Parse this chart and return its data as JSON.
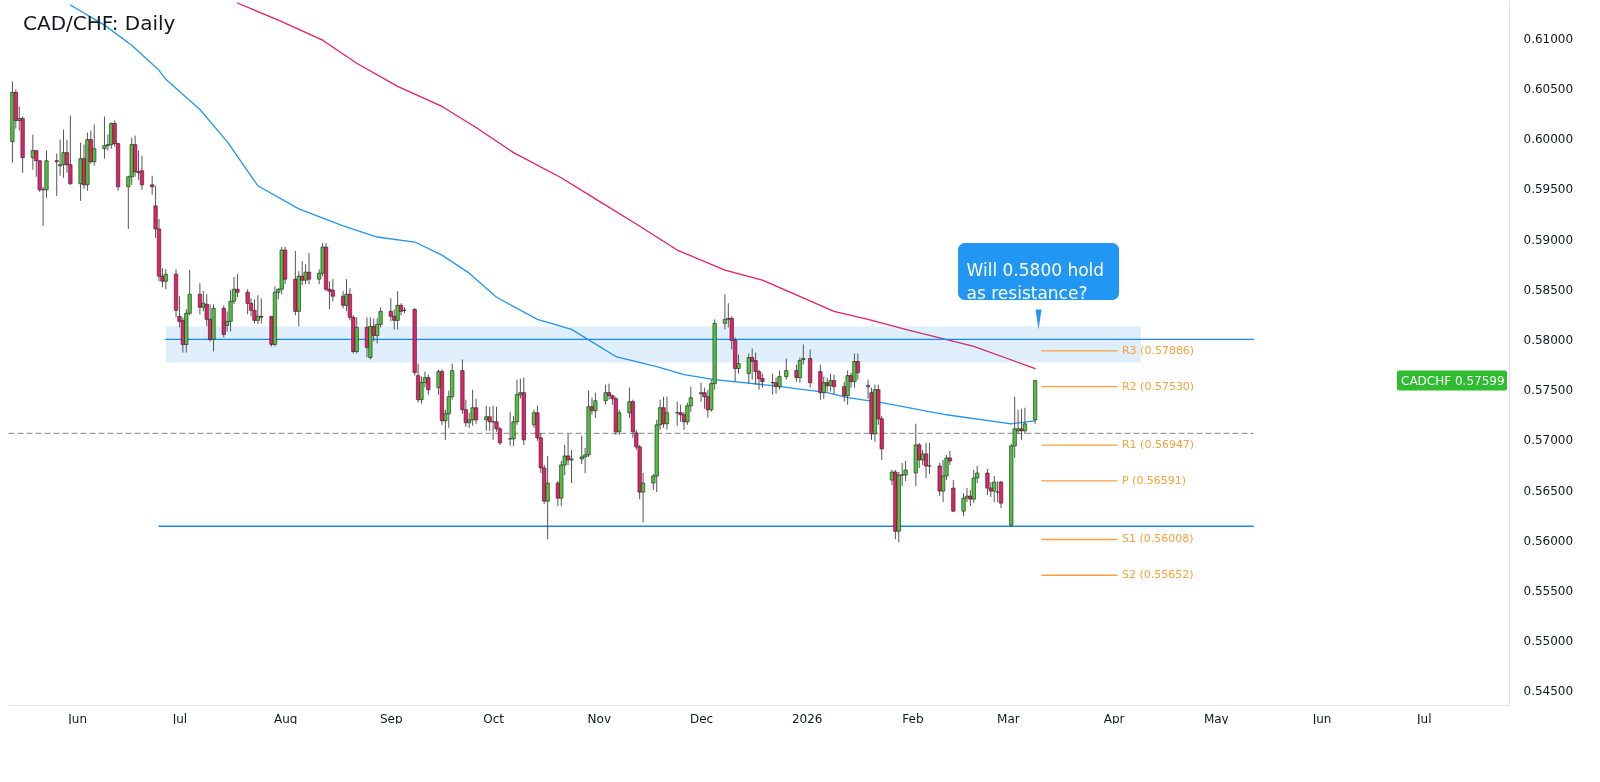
{
  "chart_data": {
    "type": "candlestick",
    "title": "CAD/CHF: Daily",
    "xlim": [
      "2025-05-12",
      "2026-07-26"
    ],
    "xticks": [
      {
        "value": "2025-06-01",
        "label": "Jun"
      },
      {
        "value": "2025-07-01",
        "label": "Jul"
      },
      {
        "value": "2025-08-01",
        "label": "Aug"
      },
      {
        "value": "2025-09-01",
        "label": "Sep"
      },
      {
        "value": "2025-10-01",
        "label": "Oct"
      },
      {
        "value": "2025-11-01",
        "label": "Nov"
      },
      {
        "value": "2025-12-01",
        "label": "Dec"
      },
      {
        "value": "2026-01-01",
        "label": "2026"
      },
      {
        "value": "2026-02-01",
        "label": "Feb"
      },
      {
        "value": "2026-03-01",
        "label": "Mar"
      },
      {
        "value": "2026-04-01",
        "label": "Apr"
      },
      {
        "value": "2026-05-01",
        "label": "May"
      },
      {
        "value": "2026-06-01",
        "label": "Jun"
      },
      {
        "value": "2026-07-01",
        "label": "Jul"
      }
    ],
    "ylim": [
      0.5436,
      0.6138
    ],
    "yticks": [
      {
        "value": 0.545,
        "label": "0.54500"
      },
      {
        "value": 0.55,
        "label": "0.55000"
      },
      {
        "value": 0.555,
        "label": "0.55500"
      },
      {
        "value": 0.56,
        "label": "0.56000"
      },
      {
        "value": 0.565,
        "label": "0.56500"
      },
      {
        "value": 0.57,
        "label": "0.57000"
      },
      {
        "value": 0.575,
        "label": "0.57500"
      },
      {
        "value": 0.58,
        "label": "0.58000"
      },
      {
        "value": 0.585,
        "label": "0.58500"
      },
      {
        "value": 0.59,
        "label": "0.59000"
      },
      {
        "value": 0.595,
        "label": "0.59500"
      },
      {
        "value": 0.6,
        "label": "0.60000"
      },
      {
        "value": 0.605,
        "label": "0.60500"
      },
      {
        "value": 0.61,
        "label": "0.61000"
      }
    ],
    "x": [
      "2025-05-13",
      "2025-05-14",
      "2025-05-15",
      "2025-05-16",
      "2025-05-19",
      "2025-05-20",
      "2025-05-21",
      "2025-05-22",
      "2025-05-23",
      "2025-05-26",
      "2025-05-27",
      "2025-05-28",
      "2025-05-29",
      "2025-05-30",
      "2025-06-02",
      "2025-06-03",
      "2025-06-04",
      "2025-06-05",
      "2025-06-06",
      "2025-06-09",
      "2025-06-10",
      "2025-06-11",
      "2025-06-12",
      "2025-06-13",
      "2025-06-16",
      "2025-06-17",
      "2025-06-18",
      "2025-06-19",
      "2025-06-20",
      "2025-06-23",
      "2025-06-24",
      "2025-06-25",
      "2025-06-26",
      "2025-06-27",
      "2025-06-30",
      "2025-07-01",
      "2025-07-02",
      "2025-07-03",
      "2025-07-04",
      "2025-07-07",
      "2025-07-08",
      "2025-07-09",
      "2025-07-10",
      "2025-07-11",
      "2025-07-14",
      "2025-07-15",
      "2025-07-16",
      "2025-07-17",
      "2025-07-18",
      "2025-07-21",
      "2025-07-22",
      "2025-07-23",
      "2025-07-24",
      "2025-07-25",
      "2025-07-28",
      "2025-07-29",
      "2025-07-30",
      "2025-07-31",
      "2025-08-01",
      "2025-08-04",
      "2025-08-05",
      "2025-08-06",
      "2025-08-07",
      "2025-08-08",
      "2025-08-11",
      "2025-08-12",
      "2025-08-13",
      "2025-08-14",
      "2025-08-15",
      "2025-08-18",
      "2025-08-19",
      "2025-08-20",
      "2025-08-21",
      "2025-08-22",
      "2025-08-25",
      "2025-08-26",
      "2025-08-27",
      "2025-08-28",
      "2025-08-29",
      "2025-09-01",
      "2025-09-02",
      "2025-09-03",
      "2025-09-04",
      "2025-09-05",
      "2025-09-08",
      "2025-09-09",
      "2025-09-10",
      "2025-09-11",
      "2025-09-12",
      "2025-09-15",
      "2025-09-16",
      "2025-09-17",
      "2025-09-18",
      "2025-09-19",
      "2025-09-22",
      "2025-09-23",
      "2025-09-24",
      "2025-09-25",
      "2025-09-26",
      "2025-09-29",
      "2025-09-30",
      "2025-10-01",
      "2025-10-02",
      "2025-10-03",
      "2025-10-06",
      "2025-10-07",
      "2025-10-08",
      "2025-10-09",
      "2025-10-10",
      "2025-10-13",
      "2025-10-14",
      "2025-10-15",
      "2025-10-16",
      "2025-10-17",
      "2025-10-20",
      "2025-10-21",
      "2025-10-22",
      "2025-10-23",
      "2025-10-24",
      "2025-10-27",
      "2025-10-28",
      "2025-10-29",
      "2025-10-30",
      "2025-10-31",
      "2025-11-03",
      "2025-11-04",
      "2025-11-05",
      "2025-11-06",
      "2025-11-07",
      "2025-11-10",
      "2025-11-11",
      "2025-11-12",
      "2025-11-13",
      "2025-11-14",
      "2025-11-17",
      "2025-11-18",
      "2025-11-19",
      "2025-11-20",
      "2025-11-21",
      "2025-11-24",
      "2025-11-25",
      "2025-11-26",
      "2025-11-27",
      "2025-11-28",
      "2025-12-01",
      "2025-12-02",
      "2025-12-03",
      "2025-12-04",
      "2025-12-05",
      "2025-12-08",
      "2025-12-09",
      "2025-12-10",
      "2025-12-11",
      "2025-12-12",
      "2025-12-15",
      "2025-12-16",
      "2025-12-17",
      "2025-12-18",
      "2025-12-19",
      "2025-12-22",
      "2025-12-23",
      "2025-12-24",
      "2025-12-26",
      "2025-12-29",
      "2025-12-30",
      "2025-12-31",
      "2026-01-02",
      "2026-01-05",
      "2026-01-06",
      "2026-01-07",
      "2026-01-08",
      "2026-01-09",
      "2026-01-12",
      "2026-01-13",
      "2026-01-14",
      "2026-01-15",
      "2026-01-16",
      "2026-01-19",
      "2026-01-20",
      "2026-01-21",
      "2026-01-22",
      "2026-01-23",
      "2026-01-26",
      "2026-01-27",
      "2026-01-28",
      "2026-01-29",
      "2026-01-30",
      "2026-02-02",
      "2026-02-03",
      "2026-02-04",
      "2026-02-05",
      "2026-02-06",
      "2026-02-09",
      "2026-02-10",
      "2026-02-11",
      "2026-02-12",
      "2026-02-13",
      "2026-02-16",
      "2026-02-17",
      "2026-02-18",
      "2026-02-19",
      "2026-02-20",
      "2026-02-23",
      "2026-02-24",
      "2026-02-25",
      "2026-02-26",
      "2026-02-27",
      "2026-03-02",
      "2026-03-03",
      "2026-03-04",
      "2026-03-05",
      "2026-03-06",
      "2026-03-09"
    ],
    "ohlc": [
      [
        0.5997,
        0.6057,
        0.5976,
        0.6046
      ],
      [
        0.6046,
        0.6049,
        0.601,
        0.6018
      ],
      [
        0.6018,
        0.6032,
        0.6008,
        0.602
      ],
      [
        0.602,
        0.6022,
        0.5966,
        0.5981
      ],
      [
        0.5981,
        0.6004,
        0.5969,
        0.5988
      ],
      [
        0.5988,
        0.5988,
        0.5962,
        0.5978
      ],
      [
        0.5978,
        0.5978,
        0.5947,
        0.5949
      ],
      [
        0.5949,
        0.5952,
        0.5913,
        0.5949
      ],
      [
        0.5949,
        0.5988,
        0.5941,
        0.5978
      ],
      [
        0.5978,
        0.5985,
        0.5943,
        0.5977
      ],
      [
        0.5973,
        0.5999,
        0.5963,
        0.5974
      ],
      [
        0.5974,
        0.6009,
        0.5961,
        0.5986
      ],
      [
        0.5986,
        0.5999,
        0.5966,
        0.5974
      ],
      [
        0.5974,
        0.6023,
        0.5954,
        0.5955
      ],
      [
        0.5955,
        0.5996,
        0.5938,
        0.598
      ],
      [
        0.598,
        0.5994,
        0.595,
        0.5954
      ],
      [
        0.5954,
        0.6006,
        0.5948,
        0.5999
      ],
      [
        0.5999,
        0.6008,
        0.5975,
        0.5977
      ],
      [
        0.5977,
        0.6014,
        0.5973,
        0.599
      ],
      [
        0.599,
        0.6022,
        0.598,
        0.5993
      ],
      [
        0.5993,
        0.6004,
        0.5988,
        0.5994
      ],
      [
        0.5994,
        0.6016,
        0.599,
        0.6015
      ],
      [
        0.6015,
        0.6018,
        0.5992,
        0.5995
      ],
      [
        0.5995,
        0.5996,
        0.5948,
        0.5952
      ],
      [
        0.5952,
        0.5963,
        0.591,
        0.5962
      ],
      [
        0.5962,
        0.6001,
        0.5954,
        0.5994
      ],
      [
        0.5994,
        0.6003,
        0.5962,
        0.5967
      ],
      [
        0.5967,
        0.5988,
        0.5959,
        0.5966
      ],
      [
        0.5968,
        0.5983,
        0.5949,
        0.5954
      ],
      [
        0.5954,
        0.5963,
        0.5944,
        0.5952
      ],
      [
        0.5933,
        0.5953,
        0.5901,
        0.591
      ],
      [
        0.591,
        0.592,
        0.5858,
        0.5863
      ],
      [
        0.5863,
        0.5871,
        0.5852,
        0.5858
      ],
      [
        0.5858,
        0.587,
        0.585,
        0.5865
      ],
      [
        0.5865,
        0.587,
        0.5822,
        0.5829
      ],
      [
        0.5823,
        0.5843,
        0.5812,
        0.5818
      ],
      [
        0.5819,
        0.5822,
        0.5787,
        0.5795
      ],
      [
        0.5795,
        0.583,
        0.5787,
        0.5826
      ],
      [
        0.5826,
        0.5869,
        0.5824,
        0.5845
      ],
      [
        0.5845,
        0.5856,
        0.5825,
        0.5832
      ],
      [
        0.5832,
        0.5848,
        0.5828,
        0.5836
      ],
      [
        0.5835,
        0.5845,
        0.5813,
        0.582
      ],
      [
        0.582,
        0.5835,
        0.5798,
        0.58
      ],
      [
        0.58,
        0.5835,
        0.5788,
        0.5831
      ],
      [
        0.5831,
        0.5834,
        0.5802,
        0.5805
      ],
      [
        0.5814,
        0.5828,
        0.5808,
        0.5818
      ],
      [
        0.5818,
        0.5849,
        0.5808,
        0.5838
      ],
      [
        0.5838,
        0.5862,
        0.5835,
        0.585
      ],
      [
        0.585,
        0.5865,
        0.5842,
        0.5847
      ],
      [
        0.5847,
        0.585,
        0.5825,
        0.5836
      ],
      [
        0.5836,
        0.5841,
        0.5823,
        0.5829
      ],
      [
        0.5829,
        0.584,
        0.5816,
        0.5819
      ],
      [
        0.5819,
        0.5844,
        0.5815,
        0.5823
      ],
      [
        0.5823,
        0.5841,
        0.5816,
        0.5822
      ],
      [
        0.5823,
        0.5823,
        0.5793,
        0.5795
      ],
      [
        0.5795,
        0.5853,
        0.5793,
        0.5847
      ],
      [
        0.5847,
        0.5851,
        0.584,
        0.585
      ],
      [
        0.585,
        0.5892,
        0.5845,
        0.5889
      ],
      [
        0.5889,
        0.5892,
        0.5855,
        0.586
      ],
      [
        0.586,
        0.5888,
        0.5824,
        0.5828
      ],
      [
        0.5828,
        0.5868,
        0.5813,
        0.5863
      ],
      [
        0.5863,
        0.5878,
        0.5854,
        0.5859
      ],
      [
        0.5859,
        0.5875,
        0.5855,
        0.5867
      ],
      [
        0.5867,
        0.5886,
        0.5855,
        0.586
      ],
      [
        0.586,
        0.587,
        0.5855,
        0.5866
      ],
      [
        0.5866,
        0.5896,
        0.5863,
        0.5892
      ],
      [
        0.5892,
        0.5896,
        0.5848,
        0.585
      ],
      [
        0.585,
        0.5858,
        0.583,
        0.5848
      ],
      [
        0.5849,
        0.586,
        0.5838,
        0.5843
      ],
      [
        0.5843,
        0.5848,
        0.5831,
        0.5834
      ],
      [
        0.5834,
        0.586,
        0.5828,
        0.5845
      ],
      [
        0.5845,
        0.5851,
        0.5819,
        0.5822
      ],
      [
        0.5822,
        0.5824,
        0.5786,
        0.5788
      ],
      [
        0.5788,
        0.5822,
        0.5786,
        0.5812
      ],
      [
        0.5812,
        0.5822,
        0.5782,
        0.5792
      ],
      [
        0.5782,
        0.5822,
        0.578,
        0.5813
      ],
      [
        0.5813,
        0.5821,
        0.5798,
        0.5804
      ],
      [
        0.5804,
        0.5821,
        0.5796,
        0.5815
      ],
      [
        0.5815,
        0.5832,
        0.5812,
        0.5828
      ],
      [
        0.5828,
        0.5841,
        0.5818,
        0.5823
      ],
      [
        0.5823,
        0.583,
        0.581,
        0.5819
      ],
      [
        0.5819,
        0.5848,
        0.581,
        0.5834
      ],
      [
        0.5834,
        0.5836,
        0.5824,
        0.5828
      ],
      [
        0.5829,
        0.5832,
        0.5826,
        0.5829
      ],
      [
        0.583,
        0.5831,
        0.5764,
        0.5767
      ],
      [
        0.5764,
        0.5776,
        0.5737,
        0.574
      ],
      [
        0.574,
        0.5763,
        0.5736,
        0.5757
      ],
      [
        0.5757,
        0.5768,
        0.5752,
        0.5762
      ],
      [
        0.5762,
        0.5765,
        0.5745,
        0.575
      ],
      [
        0.5752,
        0.577,
        0.5745,
        0.5768
      ],
      [
        0.5768,
        0.577,
        0.5715,
        0.5719
      ],
      [
        0.5719,
        0.573,
        0.57,
        0.5726
      ],
      [
        0.5726,
        0.5749,
        0.5712,
        0.5743
      ],
      [
        0.5743,
        0.5776,
        0.574,
        0.5769
      ],
      [
        0.5769,
        0.578,
        0.5726,
        0.573
      ],
      [
        0.573,
        0.574,
        0.5713,
        0.5717
      ],
      [
        0.5717,
        0.5727,
        0.5712,
        0.572
      ],
      [
        0.572,
        0.575,
        0.5714,
        0.5732
      ],
      [
        0.5732,
        0.5741,
        0.5716,
        0.572
      ],
      [
        0.572,
        0.5734,
        0.5709,
        0.5723
      ],
      [
        0.5723,
        0.5733,
        0.5709,
        0.5718
      ],
      [
        0.5718,
        0.5734,
        0.57,
        0.5718
      ],
      [
        0.5718,
        0.5733,
        0.5708,
        0.5711
      ],
      [
        0.5711,
        0.5713,
        0.5695,
        0.5697
      ],
      [
        0.5701,
        0.5728,
        0.5694,
        0.5701
      ],
      [
        0.5701,
        0.5724,
        0.5694,
        0.5718
      ],
      [
        0.5718,
        0.576,
        0.5715,
        0.5745
      ],
      [
        0.5745,
        0.5761,
        0.5741,
        0.5747
      ],
      [
        0.5747,
        0.5762,
        0.5695,
        0.57
      ],
      [
        0.5715,
        0.573,
        0.5712,
        0.5727
      ],
      [
        0.5727,
        0.5734,
        0.5699,
        0.5702
      ],
      [
        0.5702,
        0.5707,
        0.5667,
        0.5672
      ],
      [
        0.5672,
        0.5675,
        0.5636,
        0.5639
      ],
      [
        0.5639,
        0.5684,
        0.5601,
        0.5657
      ],
      [
        0.5657,
        0.5659,
        0.5634,
        0.5642
      ],
      [
        0.5642,
        0.5679,
        0.5634,
        0.5675
      ],
      [
        0.5675,
        0.5695,
        0.5665,
        0.5684
      ],
      [
        0.5684,
        0.5706,
        0.5675,
        0.568
      ],
      [
        0.568,
        0.569,
        0.5657,
        0.5681
      ],
      [
        0.5681,
        0.5704,
        0.5676,
        0.5683
      ],
      [
        0.5683,
        0.5692,
        0.5667,
        0.5685
      ],
      [
        0.5685,
        0.5749,
        0.5683,
        0.5733
      ],
      [
        0.5733,
        0.5742,
        0.5725,
        0.5729
      ],
      [
        0.5729,
        0.5747,
        0.5722,
        0.5739
      ],
      [
        0.5739,
        0.5755,
        0.5735,
        0.5747
      ],
      [
        0.5747,
        0.5756,
        0.574,
        0.5744
      ],
      [
        0.5744,
        0.5745,
        0.5735,
        0.5741
      ],
      [
        0.5741,
        0.5743,
        0.5705,
        0.5708
      ],
      [
        0.5708,
        0.573,
        0.5705,
        0.5727
      ],
      [
        0.5727,
        0.5752,
        0.5722,
        0.5738
      ],
      [
        0.5738,
        0.574,
        0.5702,
        0.5708
      ],
      [
        0.5707,
        0.571,
        0.569,
        0.5693
      ],
      [
        0.5693,
        0.5695,
        0.5641,
        0.5648
      ],
      [
        0.5648,
        0.5667,
        0.5618,
        0.5657
      ],
      [
        0.5657,
        0.5666,
        0.565,
        0.5664
      ],
      [
        0.5664,
        0.572,
        0.5648,
        0.5715
      ],
      [
        0.5715,
        0.574,
        0.571,
        0.5732
      ],
      [
        0.5732,
        0.5743,
        0.5712,
        0.5716
      ],
      [
        0.5716,
        0.5743,
        0.571,
        0.5727
      ],
      [
        0.5727,
        0.5738,
        0.5714,
        0.5727
      ],
      [
        0.5727,
        0.5735,
        0.5718,
        0.5725
      ],
      [
        0.5725,
        0.5728,
        0.571,
        0.5718
      ],
      [
        0.5718,
        0.5737,
        0.5715,
        0.5734
      ],
      [
        0.5734,
        0.5753,
        0.5728,
        0.5742
      ],
      [
        0.5746,
        0.5757,
        0.5738,
        0.5747
      ],
      [
        0.5747,
        0.5752,
        0.5731,
        0.5743
      ],
      [
        0.5743,
        0.575,
        0.5722,
        0.573
      ],
      [
        0.573,
        0.576,
        0.5728,
        0.5756
      ],
      [
        0.5756,
        0.582,
        0.575,
        0.5816
      ],
      [
        0.5816,
        0.5845,
        0.581,
        0.582
      ],
      [
        0.582,
        0.5836,
        0.5812,
        0.5821
      ],
      [
        0.5821,
        0.5823,
        0.579,
        0.5799
      ],
      [
        0.5799,
        0.5802,
        0.5758,
        0.5771
      ],
      [
        0.5771,
        0.5785,
        0.5766,
        0.5776
      ],
      [
        0.5766,
        0.5786,
        0.5756,
        0.5782
      ],
      [
        0.5782,
        0.5791,
        0.576,
        0.5778
      ],
      [
        0.5779,
        0.5787,
        0.5755,
        0.5768
      ],
      [
        0.5768,
        0.577,
        0.575,
        0.5761
      ],
      [
        0.5761,
        0.5766,
        0.5752,
        0.5758
      ],
      [
        0.5757,
        0.5766,
        0.5745,
        0.5757
      ],
      [
        0.5757,
        0.5762,
        0.5746,
        0.5753
      ],
      [
        0.5753,
        0.5769,
        0.575,
        0.5763
      ],
      [
        0.5763,
        0.5781,
        0.576,
        0.5769
      ],
      [
        0.5769,
        0.5775,
        0.5758,
        0.5762
      ],
      [
        0.5762,
        0.5782,
        0.5757,
        0.5779
      ],
      [
        0.578,
        0.5795,
        0.5775,
        0.5781
      ],
      [
        0.5781,
        0.579,
        0.5752,
        0.5757
      ],
      [
        0.5768,
        0.5775,
        0.574,
        0.5747
      ],
      [
        0.5747,
        0.5763,
        0.5741,
        0.5757
      ],
      [
        0.5757,
        0.5762,
        0.5748,
        0.5754
      ],
      [
        0.5754,
        0.5766,
        0.5748,
        0.5759
      ],
      [
        0.5759,
        0.5765,
        0.5745,
        0.5753
      ],
      [
        0.5753,
        0.5758,
        0.5738,
        0.5744
      ],
      [
        0.5744,
        0.5769,
        0.5735,
        0.5764
      ],
      [
        0.5764,
        0.5767,
        0.5752,
        0.5758
      ],
      [
        0.5758,
        0.5786,
        0.5752,
        0.5778
      ],
      [
        0.5778,
        0.5786,
        0.576,
        0.5767
      ],
      [
        0.5754,
        0.576,
        0.5741,
        0.5753
      ],
      [
        0.5747,
        0.5752,
        0.57,
        0.5706
      ],
      [
        0.5706,
        0.5755,
        0.5698,
        0.575
      ],
      [
        0.575,
        0.5755,
        0.5715,
        0.5721
      ],
      [
        0.5721,
        0.5724,
        0.568,
        0.5691
      ],
      [
        0.566,
        0.567,
        0.5655,
        0.5668
      ],
      [
        0.5668,
        0.567,
        0.5601,
        0.5609
      ],
      [
        0.5609,
        0.5668,
        0.5598,
        0.5665
      ],
      [
        0.5665,
        0.5677,
        0.5654,
        0.5665
      ],
      [
        0.5665,
        0.5679,
        0.5659,
        0.567
      ],
      [
        0.5667,
        0.5716,
        0.5654,
        0.5695
      ],
      [
        0.5695,
        0.5697,
        0.5672,
        0.568
      ],
      [
        0.568,
        0.569,
        0.5675,
        0.5686
      ],
      [
        0.5686,
        0.5697,
        0.5662,
        0.5674
      ],
      [
        0.5674,
        0.5697,
        0.5666,
        0.5674
      ],
      [
        0.5674,
        0.5677,
        0.5644,
        0.5649
      ],
      [
        0.5649,
        0.568,
        0.5638,
        0.5664
      ],
      [
        0.5664,
        0.5685,
        0.566,
        0.5682
      ],
      [
        0.5682,
        0.5689,
        0.5675,
        0.5679
      ],
      [
        0.5652,
        0.566,
        0.5628,
        0.5629
      ],
      [
        0.5629,
        0.5647,
        0.5624,
        0.5642
      ],
      [
        0.5642,
        0.5652,
        0.5638,
        0.5644
      ],
      [
        0.5644,
        0.565,
        0.5634,
        0.5641
      ],
      [
        0.5641,
        0.567,
        0.5637,
        0.5662
      ],
      [
        0.5662,
        0.5674,
        0.5657,
        0.5667
      ],
      [
        0.5667,
        0.5671,
        0.5645,
        0.5652
      ],
      [
        0.5652,
        0.5658,
        0.5643,
        0.5649
      ],
      [
        0.5649,
        0.5664,
        0.5638,
        0.5658
      ],
      [
        0.5648,
        0.5659,
        0.5638,
        0.5648
      ],
      [
        0.5658,
        0.5659,
        0.5632,
        0.5637
      ],
      [
        0.5615,
        0.5696,
        0.5613,
        0.5694
      ],
      [
        0.5694,
        0.5743,
        0.5682,
        0.5711
      ],
      [
        0.5709,
        0.573,
        0.5706,
        0.5711
      ],
      [
        0.5711,
        0.5731,
        0.57,
        0.5709
      ],
      [
        0.5709,
        0.5732,
        0.5706,
        0.5716
      ],
      [
        0.572,
        0.576,
        0.5716,
        0.5759
      ]
    ],
    "series": [
      {
        "type": "line",
        "color": "#2196f3",
        "x": [
          "2025-05-30",
          "2025-06-09",
          "2025-06-17",
          "2025-06-25",
          "2025-06-27",
          "2025-07-07",
          "2025-07-15",
          "2025-07-24",
          "2025-08-05",
          "2025-08-18",
          "2025-08-28",
          "2025-09-08",
          "2025-09-16",
          "2025-09-24",
          "2025-10-02",
          "2025-10-14",
          "2025-10-24",
          "2025-11-06",
          "2025-11-18",
          "2025-11-26",
          "2025-12-05",
          "2025-12-22",
          "2026-01-07",
          "2026-01-13",
          "2026-01-23",
          "2026-02-11",
          "2026-03-02",
          "2026-03-09"
        ],
        "values": [
          0.6133,
          0.6113,
          0.6093,
          0.6068,
          0.6059,
          0.6029,
          0.5997,
          0.5953,
          0.593,
          0.5913,
          0.5902,
          0.5897,
          0.5884,
          0.5866,
          0.5842,
          0.582,
          0.581,
          0.5783,
          0.5773,
          0.5765,
          0.576,
          0.5754,
          0.5747,
          0.5742,
          0.5737,
          0.5725,
          0.5716,
          0.5719
        ]
      },
      {
        "type": "line",
        "color": "#e91e63",
        "x": [
          "2025-07-18",
          "2025-07-30",
          "2025-08-12",
          "2025-08-22",
          "2025-09-03",
          "2025-09-16",
          "2025-09-26",
          "2025-10-07",
          "2025-10-21",
          "2025-10-31",
          "2025-11-12",
          "2025-11-24",
          "2025-12-08",
          "2025-12-19",
          "2026-01-09",
          "2026-01-19",
          "2026-01-30",
          "2026-02-19",
          "2026-03-09"
        ],
        "values": [
          0.6135,
          0.6118,
          0.6098,
          0.6075,
          0.6052,
          0.6032,
          0.6011,
          0.5986,
          0.5961,
          0.594,
          0.5915,
          0.5889,
          0.5869,
          0.5859,
          0.5828,
          0.582,
          0.581,
          0.5793,
          0.5771
        ]
      },
      {
        "type": "line",
        "color": "#1e88e5",
        "x": [
          "2025-06-27",
          "2026-04-09",
          "2026-05-12"
        ],
        "values": [
          0.58,
          0.58,
          0.58
        ],
        "lower": [
          0.5777,
          0.5777,
          null
        ],
        "upper": [
          0.5813,
          0.5813,
          null
        ]
      },
      {
        "type": "line",
        "color": "#1e88e5",
        "x": [
          "2025-06-25",
          "2026-05-12"
        ],
        "values": [
          0.5614,
          0.5614
        ]
      },
      {
        "type": "line",
        "color": "#9e9e9e",
        "line_style": "dashed",
        "x": [
          "2025-05-12",
          "2026-05-12"
        ],
        "values": [
          0.57065,
          0.57065
        ]
      },
      {
        "type": "line",
        "name": "R3 (0.57886)",
        "color": "#f7a13b",
        "x": [
          "2026-03-11",
          "2026-04-02"
        ],
        "values": [
          0.57886,
          0.57886
        ]
      },
      {
        "type": "line",
        "name": "R2 (0.57530)",
        "color": "#f7a13b",
        "x": [
          "2026-03-11",
          "2026-04-02"
        ],
        "values": [
          0.5753,
          0.5753
        ]
      },
      {
        "type": "line",
        "name": "R1 (0.56947)",
        "color": "#f7a13b",
        "x": [
          "2026-03-11",
          "2026-04-02"
        ],
        "values": [
          0.56947,
          0.56947
        ]
      },
      {
        "type": "line",
        "name": "P (0.56591)",
        "color": "#f7a13b",
        "x": [
          "2026-03-11",
          "2026-04-02"
        ],
        "values": [
          0.56591,
          0.56591
        ]
      },
      {
        "type": "line",
        "name": "S1 (0.56008)",
        "color": "#f7a13b",
        "x": [
          "2026-03-11",
          "2026-04-02"
        ],
        "values": [
          0.56008,
          0.56008
        ]
      },
      {
        "type": "line",
        "name": "S2 (0.55652)",
        "color": "#f7a13b",
        "x": [
          "2026-03-11",
          "2026-04-02"
        ],
        "values": [
          0.55652,
          0.55652
        ]
      }
    ],
    "annotations": [
      {
        "text": "Will 0.5800 hold\nas resistance?",
        "x": "2026-03-10",
        "y": 0.58
      },
      "CADCHF 0.57599"
    ]
  }
}
